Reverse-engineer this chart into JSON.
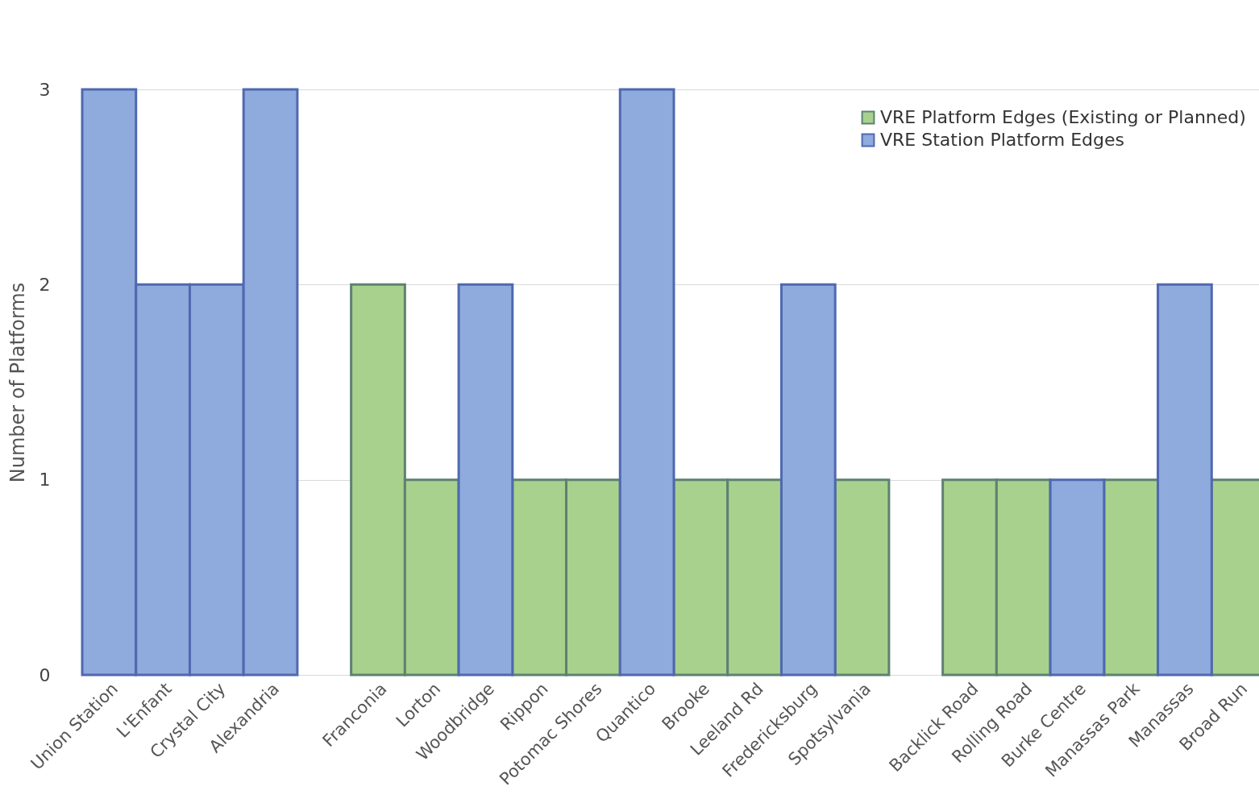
{
  "chart_data": {
    "type": "bar",
    "ylabel": "Number of Platforms",
    "categories": [
      "Union Station",
      "L'Enfant",
      "Crystal City",
      "Alexandria",
      null,
      "Franconia",
      "Lorton",
      "Woodbridge",
      "Rippon",
      "Potomac Shores",
      "Quantico",
      "Brooke",
      "Leeland Rd",
      "Fredericksburg",
      "Spotsylvania",
      null,
      "Backlick Road",
      "Rolling Road",
      "Burke Centre",
      "Manassas Park",
      "Manassas",
      "Broad Run"
    ],
    "series": [
      {
        "name": "VRE Platform Edges (Existing or Planned)",
        "color": "#a9d18e",
        "values": [
          null,
          null,
          null,
          null,
          null,
          2,
          1,
          null,
          1,
          1,
          null,
          1,
          1,
          null,
          1,
          null,
          1,
          1,
          null,
          1,
          null,
          1
        ]
      },
      {
        "name": "VRE Station Platform Edges",
        "color": "#8faadc",
        "values": [
          3,
          2,
          2,
          3,
          null,
          null,
          null,
          2,
          null,
          null,
          3,
          null,
          null,
          2,
          null,
          null,
          null,
          null,
          1,
          null,
          2,
          null
        ]
      }
    ],
    "ylim": [
      0,
      3
    ],
    "yticks": [
      0,
      1,
      2,
      3
    ],
    "grid": "y",
    "legend": "top right"
  }
}
